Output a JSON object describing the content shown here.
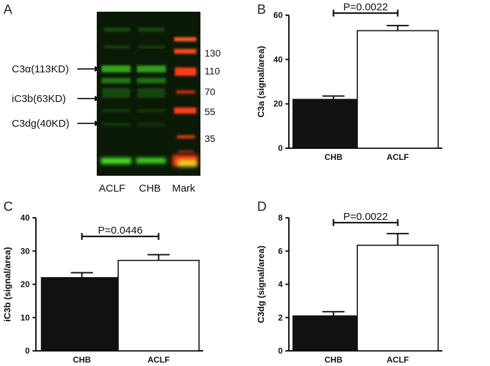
{
  "blot": {
    "letter": "A",
    "band_labels": [
      "C3α(113KD)",
      "iC3b(63KD)",
      "C3dg(40KD)"
    ],
    "ladder": [
      "130",
      "110",
      "70",
      "55",
      "35"
    ],
    "lanes": [
      "ACLF",
      "CHB",
      "Mark"
    ],
    "colors": {
      "background": "#0b1a06",
      "green_band": "#35c81c",
      "red_band": "#ff3a12"
    }
  },
  "chart_data": [
    {
      "letter": "B",
      "type": "bar",
      "categories": [
        "CHB",
        "ACLF"
      ],
      "values": [
        22,
        53
      ],
      "errors": [
        1.5,
        2.3
      ],
      "ylabel": "C3a (signal/area)",
      "ylim": [
        0,
        60
      ],
      "yticks": [
        "0",
        "20",
        "40",
        "60"
      ],
      "pvalue": "P=0.0022",
      "bar_fills": [
        "#111111",
        "#ffffff"
      ],
      "grid": false
    },
    {
      "letter": "C",
      "type": "bar",
      "categories": [
        "CHB",
        "ACLF"
      ],
      "values": [
        22,
        27.2
      ],
      "errors": [
        1.5,
        1.7
      ],
      "ylabel": "iC3b (signal/area)",
      "ylim": [
        0,
        40
      ],
      "yticks": [
        "0",
        "10",
        "20",
        "30",
        "40"
      ],
      "pvalue": "P=0.0446",
      "bar_fills": [
        "#111111",
        "#ffffff"
      ],
      "grid": false
    },
    {
      "letter": "D",
      "type": "bar",
      "categories": [
        "CHB",
        "ACLF"
      ],
      "values": [
        2.1,
        6.35
      ],
      "errors": [
        0.25,
        0.7
      ],
      "ylabel": "C3dg (signal/area)",
      "ylim": [
        0,
        8
      ],
      "yticks": [
        "0",
        "2",
        "4",
        "6",
        "8"
      ],
      "pvalue": "P=0.0022",
      "bar_fills": [
        "#111111",
        "#ffffff"
      ],
      "grid": false
    }
  ]
}
